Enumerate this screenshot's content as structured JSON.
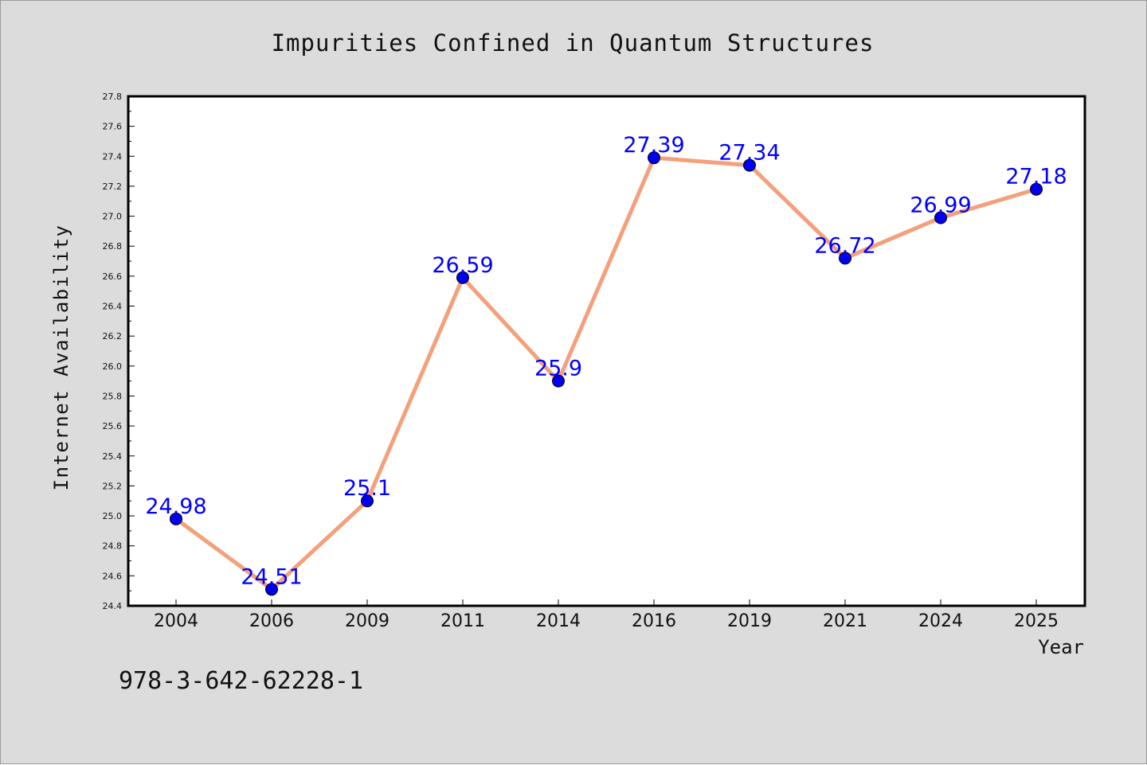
{
  "chart_data": {
    "type": "line",
    "title": "Impurities Confined in Quantum Structures",
    "xlabel": "Year",
    "ylabel": "Internet Availability",
    "categories": [
      "2004",
      "2006",
      "2009",
      "2011",
      "2014",
      "2016",
      "2019",
      "2021",
      "2024",
      "2025"
    ],
    "series": [
      {
        "values": [
          24.98,
          24.51,
          25.1,
          26.59,
          25.9,
          27.39,
          27.34,
          26.72,
          26.99,
          27.18
        ]
      }
    ],
    "data_labels": [
      "24.98",
      "24.51",
      "25.1",
      "26.59",
      "25.9",
      "27.39",
      "27.34",
      "26.72",
      "26.99",
      "27.18"
    ],
    "ylim": [
      24.4,
      27.8
    ],
    "yticks": [
      "24.4",
      "24.6",
      "24.8",
      "25.0",
      "25.2",
      "25.4",
      "25.6",
      "25.8",
      "26.0",
      "26.2",
      "26.4",
      "26.6",
      "26.8",
      "27.0",
      "27.2",
      "27.4",
      "27.6",
      "27.8"
    ],
    "grid": false,
    "line_color": "#f4a07a",
    "marker_color": "#0000ee",
    "label_color": "#0000ff",
    "annotation": "978-3-642-62228-1"
  }
}
